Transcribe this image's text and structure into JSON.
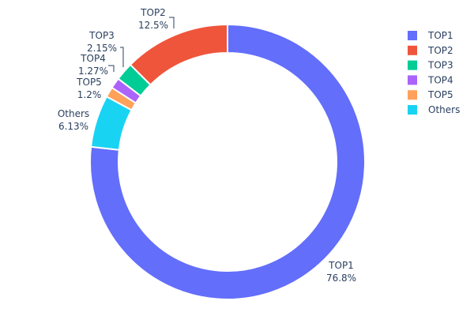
{
  "chart_data": {
    "type": "pie",
    "hole": true,
    "direction": "clockwise",
    "labels": [
      "TOP1",
      "Others",
      "TOP5",
      "TOP4",
      "TOP3",
      "TOP2"
    ],
    "values": [
      76.8,
      6.13,
      1.2,
      1.27,
      2.15,
      12.5
    ],
    "value_labels": [
      "76.8%",
      "6.13%",
      "1.2%",
      "1.27%",
      "2.15%",
      "12.5%"
    ],
    "colors": [
      "#636efa",
      "#19d3f3",
      "#ffa15a",
      "#ab63fa",
      "#00cc96",
      "#ef553b"
    ],
    "legend": {
      "placement": "top-right",
      "entries": [
        {
          "label": "TOP1",
          "color": "#636efa"
        },
        {
          "label": "TOP2",
          "color": "#ef553b"
        },
        {
          "label": "TOP3",
          "color": "#00cc96"
        },
        {
          "label": "TOP4",
          "color": "#ab63fa"
        },
        {
          "label": "TOP5",
          "color": "#ffa15a"
        },
        {
          "label": "Others",
          "color": "#19d3f3"
        }
      ]
    }
  }
}
